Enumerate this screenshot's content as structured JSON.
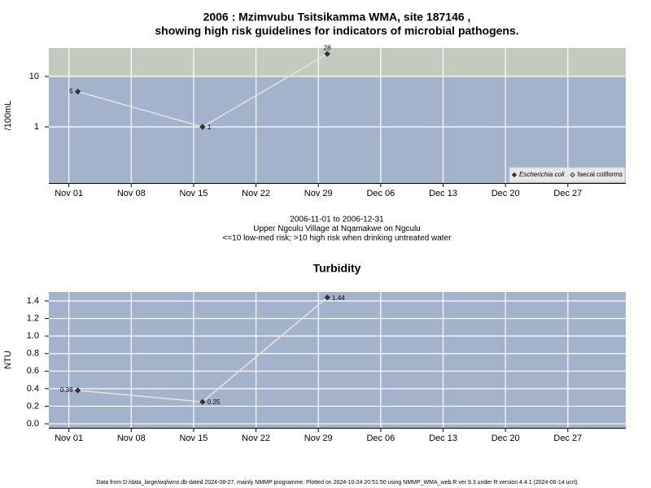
{
  "charts": [
    {
      "type": "line",
      "title": [
        "2006 : Mzimvubu Tsitsikamma WMA, site 187146 ,",
        "showing high risk guidelines for indicators of microbial pathogens."
      ],
      "ylabel": "/100mL",
      "log_y": true,
      "risk_threshold": 10,
      "x": [
        "2006-11-02",
        "2006-11-16",
        "2006-11-30"
      ],
      "xlim": [
        "2006-10-29T18:00",
        "2007-01-02T12:00"
      ],
      "xticks": [
        {
          "value": "2006-11-01",
          "label": "Nov 01"
        },
        {
          "value": "2006-11-08",
          "label": "Nov 08"
        },
        {
          "value": "2006-11-15",
          "label": "Nov 15"
        },
        {
          "value": "2006-11-22",
          "label": "Nov 22"
        },
        {
          "value": "2006-11-29",
          "label": "Nov 29"
        },
        {
          "value": "2006-12-06",
          "label": "Dec 06"
        },
        {
          "value": "2006-12-13",
          "label": "Dec 13"
        },
        {
          "value": "2006-12-20",
          "label": "Dec 20"
        },
        {
          "value": "2006-12-27",
          "label": "Dec 27"
        }
      ],
      "ylim": [
        0.077,
        36.7
      ],
      "yticks": [
        1,
        10
      ],
      "grid": true,
      "legend": "bottom-right",
      "series": [
        {
          "name": "Escherichia coli",
          "color": "#333333",
          "marker": "filled",
          "values": [
            5,
            1,
            28
          ]
        },
        {
          "name": "faecal coliforms",
          "color": "#333333",
          "marker": "open",
          "values": [
            null,
            null,
            null
          ]
        }
      ],
      "notes": [
        "2006-11-01 to 2006-12-31",
        "Upper Ngculu Village at Nqamakwe on Ngculu",
        "<=10 low-med risk; >10 high risk when drinking untreated water"
      ]
    },
    {
      "type": "line",
      "title": [
        "Turbidity"
      ],
      "ylabel": "NTU",
      "log_y": false,
      "x": [
        "2006-11-02",
        "2006-11-16",
        "2006-11-30"
      ],
      "xlim": [
        "2006-10-29T18:00",
        "2007-01-02T12:00"
      ],
      "xticks": [
        {
          "value": "2006-11-01",
          "label": "Nov 01"
        },
        {
          "value": "2006-11-08",
          "label": "Nov 08"
        },
        {
          "value": "2006-11-15",
          "label": "Nov 15"
        },
        {
          "value": "2006-11-22",
          "label": "Nov 22"
        },
        {
          "value": "2006-11-29",
          "label": "Nov 29"
        },
        {
          "value": "2006-12-06",
          "label": "Dec 06"
        },
        {
          "value": "2006-12-13",
          "label": "Dec 13"
        },
        {
          "value": "2006-12-20",
          "label": "Dec 20"
        },
        {
          "value": "2006-12-27",
          "label": "Dec 27"
        }
      ],
      "ylim": [
        -0.046,
        1.502
      ],
      "yticks": [
        {
          "value": 0,
          "label": "0.0"
        },
        0.2,
        0.4,
        0.6,
        0.8,
        {
          "value": 1,
          "label": "1.0"
        },
        1.2,
        1.4
      ],
      "grid": true,
      "series": [
        {
          "name": "Turbidity",
          "color": "#333333",
          "marker": "filled",
          "values": [
            0.38,
            0.25,
            1.44
          ]
        }
      ]
    }
  ],
  "footer": "Data from D:/data_large/wq/wms.db dated 2024-08-27, mainly NMMP programme. Plotted on 2024-10-24 20:51:50 using NMMP_WMA_web.R ver 9.3 under R version 4.4.1 (2024-06-14 ucrt)"
}
